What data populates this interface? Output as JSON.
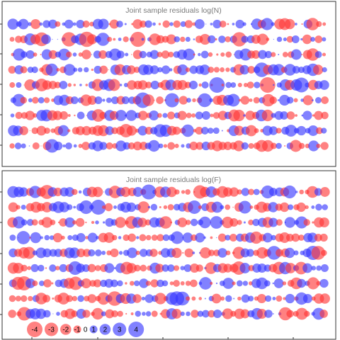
{
  "chart_data": [
    {
      "type": "bubble",
      "title": "Joint sample residuals log(N)",
      "rows": 9,
      "columns": 56,
      "residual_range": [
        -4,
        4
      ],
      "colors": {
        "positive": "#3333ff",
        "negative": "#ff3333",
        "frame": "#333333"
      },
      "grid": false,
      "seed": 7
    },
    {
      "type": "bubble",
      "title": "Joint sample residuals log(F)",
      "rows": 9,
      "columns": 56,
      "residual_range": [
        -4,
        4
      ],
      "colors": {
        "positive": "#3333ff",
        "negative": "#ff3333",
        "frame": "#333333"
      },
      "grid": false,
      "seed": 19
    }
  ],
  "legend": {
    "placement": "bottom-left",
    "entries": [
      {
        "value": -4,
        "label": "-4"
      },
      {
        "value": -3,
        "label": "-3"
      },
      {
        "value": -2,
        "label": "-2"
      },
      {
        "value": -1,
        "label": "-1"
      },
      {
        "value": 0,
        "label": "0"
      },
      {
        "value": 1,
        "label": "1"
      },
      {
        "value": 2,
        "label": "2"
      },
      {
        "value": 3,
        "label": "3"
      },
      {
        "value": 4,
        "label": "4"
      }
    ]
  }
}
